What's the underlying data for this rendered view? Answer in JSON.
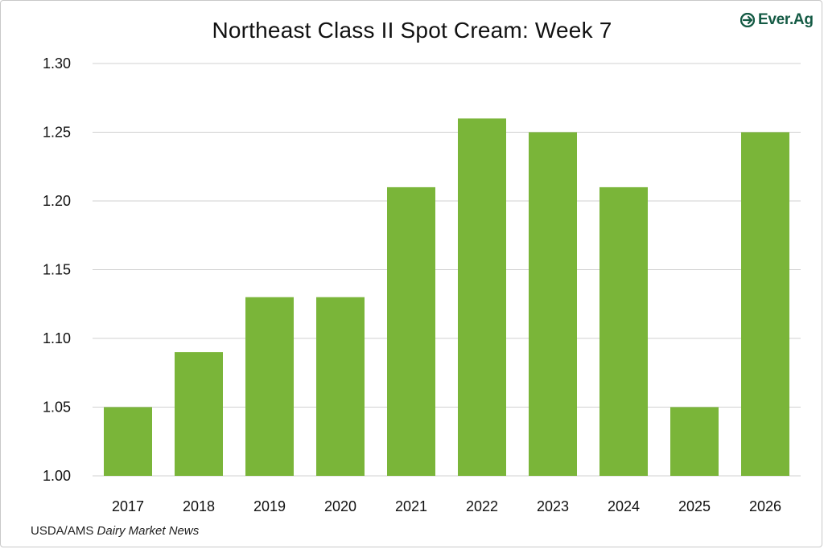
{
  "logo": {
    "text": "Ever.Ag",
    "icon": "ever-ag-logo-mark",
    "color": "#155b45"
  },
  "source": {
    "prefix": "USDA/AMS ",
    "italic": "Dairy Market News"
  },
  "chart_data": {
    "type": "bar",
    "title": "Northeast Class II Spot Cream: Week 7",
    "xlabel": "",
    "ylabel": "",
    "categories": [
      "2017",
      "2018",
      "2019",
      "2020",
      "2021",
      "2022",
      "2023",
      "2024",
      "2025",
      "2026"
    ],
    "values": [
      1.05,
      1.09,
      1.13,
      1.13,
      1.21,
      1.26,
      1.25,
      1.21,
      1.05,
      1.25
    ],
    "ylim": [
      1.0,
      1.3
    ],
    "yticks": [
      "1.00",
      "1.05",
      "1.10",
      "1.15",
      "1.20",
      "1.25",
      "1.30"
    ],
    "grid": "horizontal",
    "bar_color": "#7ab539",
    "grid_color": "#d0d0d0"
  }
}
